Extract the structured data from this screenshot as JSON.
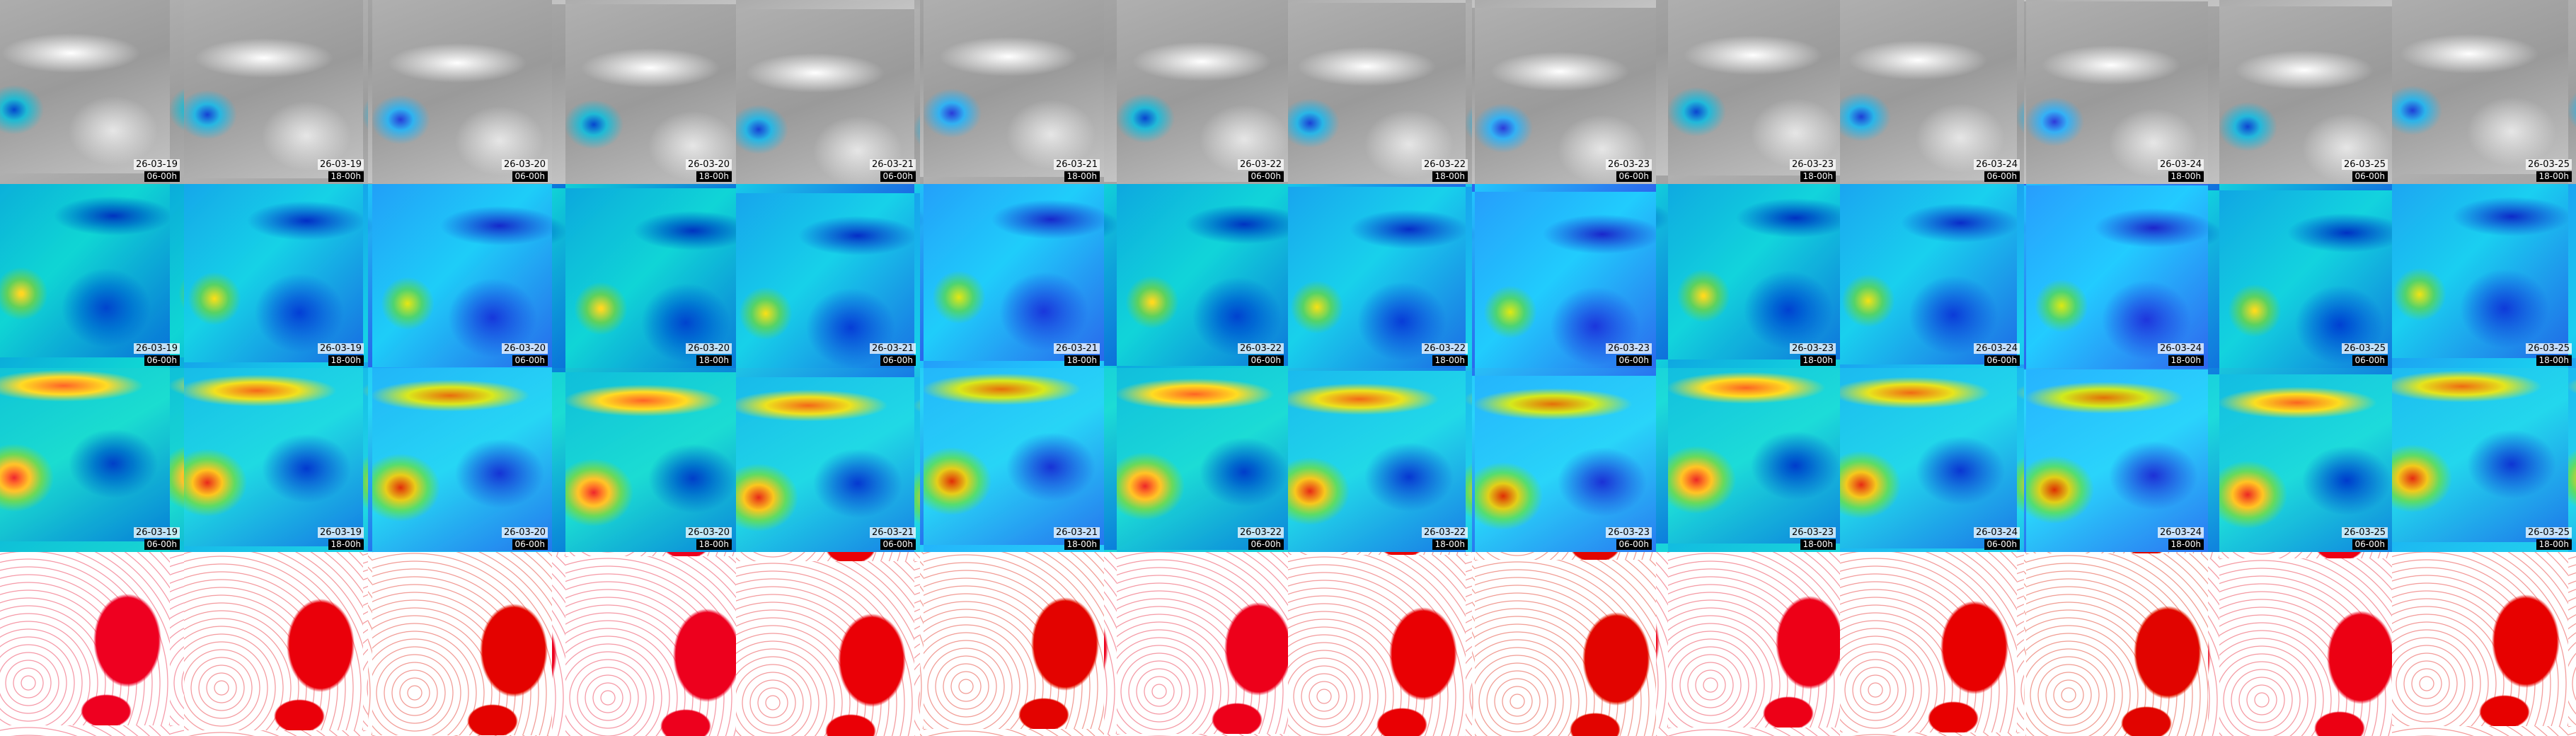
{
  "columns": [
    {
      "date": "26-03-19",
      "time": "06-00h"
    },
    {
      "date": "26-03-19",
      "time": "18-00h"
    },
    {
      "date": "26-03-20",
      "time": "06-00h"
    },
    {
      "date": "26-03-20",
      "time": "18-00h"
    },
    {
      "date": "26-03-21",
      "time": "06-00h"
    },
    {
      "date": "26-03-21",
      "time": "18-00h"
    },
    {
      "date": "26-03-22",
      "time": "06-00h"
    },
    {
      "date": "26-03-22",
      "time": "18-00h"
    },
    {
      "date": "26-03-23",
      "time": "06-00h"
    },
    {
      "date": "26-03-23",
      "time": "18-00h"
    },
    {
      "date": "26-03-24",
      "time": "06-00h"
    },
    {
      "date": "26-03-24",
      "time": "18-00h"
    },
    {
      "date": "26-03-25",
      "time": "06-00h"
    },
    {
      "date": "26-03-25",
      "time": "18-00h"
    }
  ]
}
